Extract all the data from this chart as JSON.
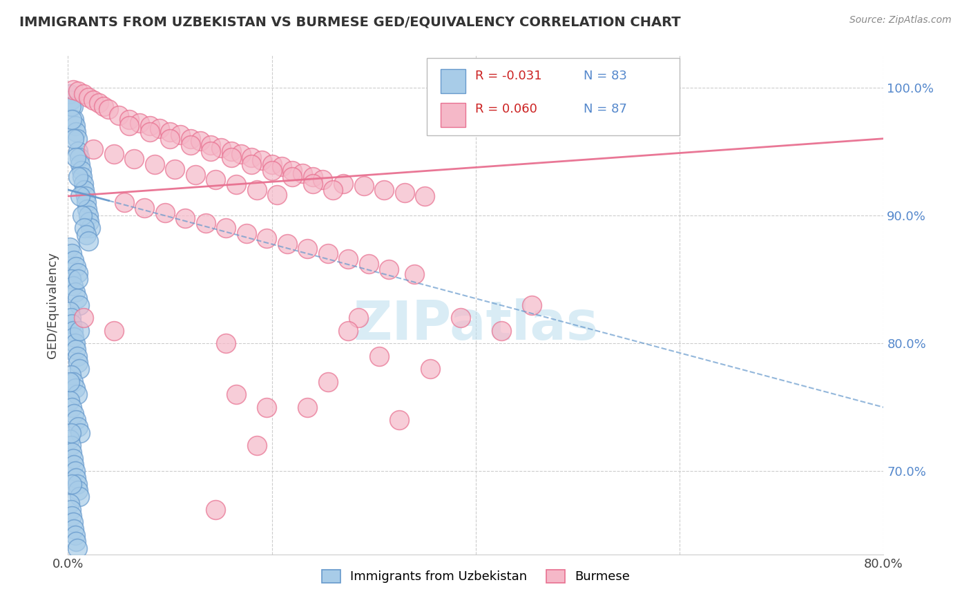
{
  "title": "IMMIGRANTS FROM UZBEKISTAN VS BURMESE GED/EQUIVALENCY CORRELATION CHART",
  "source": "Source: ZipAtlas.com",
  "ylabel": "GED/Equivalency",
  "xlim": [
    0.0,
    0.8
  ],
  "ylim": [
    0.635,
    1.025
  ],
  "legend_r_blue": "-0.031",
  "legend_n_blue": "83",
  "legend_r_pink": "0.060",
  "legend_n_pink": "87",
  "blue_color": "#a8cce8",
  "blue_edge_color": "#6699cc",
  "pink_color": "#f5b8c8",
  "pink_edge_color": "#e87090",
  "blue_trend_color": "#6699cc",
  "pink_trend_color": "#e87090",
  "background_color": "#ffffff",
  "grid_color": "#cccccc",
  "watermark": "ZIPatlas",
  "blue_x": [
    0.002,
    0.003,
    0.005,
    0.006,
    0.007,
    0.008,
    0.009,
    0.01,
    0.011,
    0.012,
    0.013,
    0.014,
    0.015,
    0.016,
    0.017,
    0.018,
    0.019,
    0.02,
    0.021,
    0.022,
    0.003,
    0.004,
    0.006,
    0.008,
    0.01,
    0.012,
    0.014,
    0.016,
    0.018,
    0.02,
    0.002,
    0.004,
    0.006,
    0.008,
    0.01,
    0.003,
    0.005,
    0.007,
    0.009,
    0.011,
    0.002,
    0.003,
    0.004,
    0.005,
    0.006,
    0.007,
    0.008,
    0.009,
    0.01,
    0.011,
    0.003,
    0.005,
    0.007,
    0.009,
    0.002,
    0.004,
    0.006,
    0.008,
    0.01,
    0.012,
    0.002,
    0.003,
    0.004,
    0.005,
    0.006,
    0.007,
    0.008,
    0.009,
    0.01,
    0.011,
    0.002,
    0.003,
    0.004,
    0.005,
    0.006,
    0.007,
    0.008,
    0.009,
    0.01,
    0.011,
    0.002,
    0.003,
    0.004
  ],
  "blue_y": [
    0.995,
    0.99,
    0.985,
    0.975,
    0.97,
    0.965,
    0.96,
    0.95,
    0.945,
    0.94,
    0.935,
    0.93,
    0.925,
    0.92,
    0.915,
    0.91,
    0.905,
    0.9,
    0.895,
    0.89,
    0.985,
    0.975,
    0.96,
    0.945,
    0.93,
    0.915,
    0.9,
    0.89,
    0.885,
    0.88,
    0.875,
    0.87,
    0.865,
    0.86,
    0.855,
    0.85,
    0.845,
    0.84,
    0.835,
    0.83,
    0.825,
    0.82,
    0.815,
    0.81,
    0.805,
    0.8,
    0.795,
    0.79,
    0.785,
    0.78,
    0.775,
    0.77,
    0.765,
    0.76,
    0.755,
    0.75,
    0.745,
    0.74,
    0.735,
    0.73,
    0.725,
    0.72,
    0.715,
    0.71,
    0.705,
    0.7,
    0.695,
    0.69,
    0.685,
    0.68,
    0.675,
    0.67,
    0.665,
    0.66,
    0.655,
    0.65,
    0.645,
    0.64,
    0.85,
    0.81,
    0.77,
    0.73,
    0.69
  ],
  "pink_x": [
    0.005,
    0.01,
    0.015,
    0.02,
    0.025,
    0.03,
    0.035,
    0.04,
    0.05,
    0.06,
    0.07,
    0.08,
    0.09,
    0.1,
    0.11,
    0.12,
    0.13,
    0.14,
    0.15,
    0.16,
    0.17,
    0.18,
    0.19,
    0.2,
    0.21,
    0.22,
    0.23,
    0.24,
    0.25,
    0.27,
    0.29,
    0.31,
    0.33,
    0.35,
    0.06,
    0.08,
    0.1,
    0.12,
    0.14,
    0.16,
    0.18,
    0.2,
    0.22,
    0.24,
    0.26,
    0.025,
    0.045,
    0.065,
    0.085,
    0.105,
    0.125,
    0.145,
    0.165,
    0.185,
    0.205,
    0.055,
    0.075,
    0.095,
    0.115,
    0.135,
    0.155,
    0.175,
    0.195,
    0.215,
    0.235,
    0.255,
    0.275,
    0.295,
    0.315,
    0.34,
    0.015,
    0.045,
    0.155,
    0.305,
    0.355,
    0.255,
    0.165,
    0.455,
    0.385,
    0.425,
    0.195,
    0.325,
    0.285,
    0.235,
    0.275,
    0.185,
    0.145
  ],
  "pink_y": [
    0.998,
    0.997,
    0.995,
    0.992,
    0.99,
    0.988,
    0.985,
    0.983,
    0.978,
    0.975,
    0.972,
    0.97,
    0.968,
    0.965,
    0.963,
    0.96,
    0.958,
    0.955,
    0.953,
    0.95,
    0.948,
    0.945,
    0.943,
    0.94,
    0.938,
    0.935,
    0.933,
    0.93,
    0.928,
    0.925,
    0.923,
    0.92,
    0.918,
    0.915,
    0.97,
    0.965,
    0.96,
    0.955,
    0.95,
    0.945,
    0.94,
    0.935,
    0.93,
    0.925,
    0.92,
    0.952,
    0.948,
    0.944,
    0.94,
    0.936,
    0.932,
    0.928,
    0.924,
    0.92,
    0.916,
    0.91,
    0.906,
    0.902,
    0.898,
    0.894,
    0.89,
    0.886,
    0.882,
    0.878,
    0.874,
    0.87,
    0.866,
    0.862,
    0.858,
    0.854,
    0.82,
    0.81,
    0.8,
    0.79,
    0.78,
    0.77,
    0.76,
    0.83,
    0.82,
    0.81,
    0.75,
    0.74,
    0.82,
    0.75,
    0.81,
    0.72,
    0.67
  ],
  "blue_trend_x0": 0.0,
  "blue_trend_x1": 0.8,
  "blue_trend_y0": 0.92,
  "blue_trend_y1": 0.75,
  "pink_trend_x0": 0.0,
  "pink_trend_x1": 0.8,
  "pink_trend_y0": 0.915,
  "pink_trend_y1": 0.96
}
